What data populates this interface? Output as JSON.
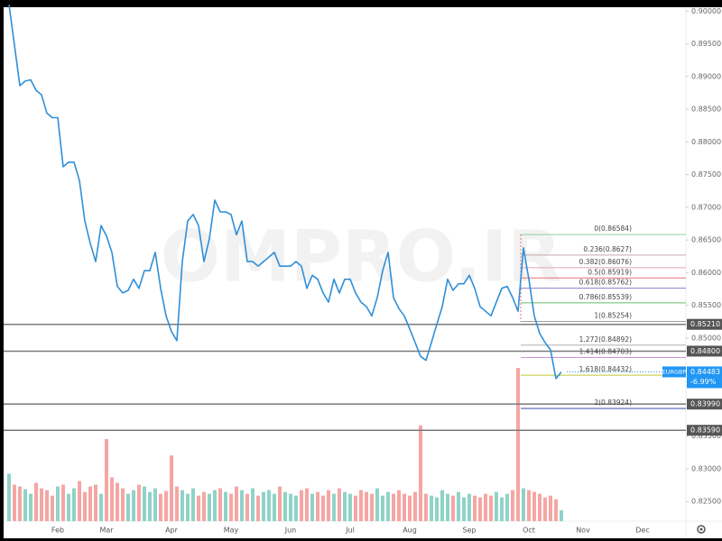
{
  "chart_data": {
    "type": "line",
    "watermark": "OMPRO.IR",
    "categories": [
      null,
      null,
      null,
      null,
      null,
      null,
      null,
      null,
      null,
      "Feb",
      null,
      null,
      null,
      null,
      null,
      null,
      null,
      null,
      "Mar",
      null,
      null,
      null,
      null,
      null,
      null,
      null,
      null,
      null,
      null,
      null,
      "Apr",
      null,
      null,
      null,
      null,
      null,
      null,
      null,
      null,
      null,
      null,
      "May",
      null,
      null,
      null,
      null,
      null,
      null,
      null,
      null,
      null,
      null,
      "Jun",
      null,
      null,
      null,
      null,
      null,
      null,
      null,
      null,
      null,
      null,
      "Jul",
      null,
      null,
      null,
      null,
      null,
      null,
      null,
      null,
      null,
      null,
      "Aug",
      null,
      null,
      null,
      null,
      null,
      null,
      null,
      null,
      null,
      null,
      "Sep",
      null,
      null,
      null,
      null,
      null,
      null,
      null,
      null,
      null,
      null,
      "Oct",
      null,
      null,
      null,
      null,
      null,
      null,
      null,
      null,
      null,
      "Nov",
      null,
      null,
      null,
      null,
      null,
      null,
      null,
      null,
      null,
      null,
      "Dec",
      null
    ],
    "series": [
      {
        "name": "EURGBP",
        "color": "#2f8fd8",
        "values": [
          0.901,
          0.8948,
          0.8886,
          0.8893,
          0.8895,
          0.8879,
          0.8872,
          0.8844,
          0.8837,
          0.8837,
          0.8762,
          0.8769,
          0.8769,
          0.8741,
          0.8679,
          0.8645,
          0.8617,
          0.8672,
          0.8656,
          0.8631,
          0.8579,
          0.8569,
          0.8573,
          0.859,
          0.8576,
          0.8603,
          0.8603,
          0.8631,
          0.8576,
          0.8534,
          0.851,
          0.8496,
          0.8617,
          0.8679,
          0.8689,
          0.8672,
          0.8617,
          0.8652,
          0.8711,
          0.8693,
          0.8693,
          0.8689,
          0.8658,
          0.8679,
          0.8617,
          0.8617,
          0.861,
          0.8617,
          0.8624,
          0.8631,
          0.861,
          0.861,
          0.861,
          0.8617,
          0.861,
          0.8576,
          0.8596,
          0.859,
          0.8569,
          0.8555,
          0.859,
          0.8569,
          0.859,
          0.859,
          0.8569,
          0.8555,
          0.8548,
          0.8534,
          0.8562,
          0.8603,
          0.8631,
          0.8562,
          0.8545,
          0.8534,
          0.8514,
          0.8493,
          0.8472,
          0.8466,
          0.8493,
          0.8521,
          0.8548,
          0.859,
          0.8573,
          0.8583,
          0.8583,
          0.8596,
          0.8576,
          0.8548,
          0.8541,
          0.8534,
          0.8555,
          0.8576,
          0.8579,
          0.8562,
          0.8541,
          0.8638,
          0.859,
          0.8534,
          0.8507,
          0.8493,
          0.8482,
          0.8438,
          0.8448,
          null,
          null,
          null,
          null,
          null,
          null,
          null,
          null,
          null,
          null,
          null,
          null,
          null,
          null,
          null,
          null
        ]
      }
    ],
    "volume": {
      "up_color": "#8fd3c8",
      "down_color": "#f5a6a3",
      "values": [
        52,
        40,
        38,
        35,
        30,
        42,
        36,
        34,
        28,
        38,
        40,
        30,
        36,
        44,
        32,
        38,
        40,
        30,
        90,
        48,
        42,
        36,
        30,
        34,
        40,
        38,
        32,
        36,
        30,
        33,
        72,
        38,
        34,
        30,
        36,
        28,
        32,
        30,
        34,
        36,
        32,
        30,
        38,
        34,
        30,
        36,
        28,
        32,
        34,
        30,
        38,
        32,
        30,
        28,
        34,
        36,
        30,
        32,
        28,
        34,
        30,
        36,
        32,
        30,
        28,
        34,
        32,
        30,
        36,
        28,
        32,
        30,
        34,
        30,
        28,
        32,
        105,
        30,
        28,
        26,
        34,
        30,
        28,
        32,
        26,
        30,
        28,
        26,
        30,
        28,
        32,
        26,
        30,
        34,
        168,
        36,
        34,
        32,
        30,
        26,
        28,
        24,
        12,
        null,
        null,
        null,
        null,
        null,
        null,
        null,
        null,
        null,
        null,
        null,
        null,
        null,
        null,
        null,
        null
      ]
    },
    "ylim": [
      0.822,
      0.9017
    ],
    "yticks": [
      {
        "value": 0.9,
        "label": "0.90000"
      },
      {
        "value": 0.895,
        "label": "0.89500"
      },
      {
        "value": 0.89,
        "label": "0.89000"
      },
      {
        "value": 0.885,
        "label": "0.88500"
      },
      {
        "value": 0.88,
        "label": "0.88000"
      },
      {
        "value": 0.875,
        "label": "0.87500"
      },
      {
        "value": 0.87,
        "label": "0.87000"
      },
      {
        "value": 0.865,
        "label": "0.86500"
      },
      {
        "value": 0.86,
        "label": "0.86000"
      },
      {
        "value": 0.855,
        "label": "0.85500"
      },
      {
        "value": 0.85,
        "label": "0.85000"
      },
      {
        "value": 0.835,
        "label": "0.83500"
      },
      {
        "value": 0.83,
        "label": "0.83000"
      },
      {
        "value": 0.825,
        "label": "0.82500"
      }
    ],
    "hlines": [
      {
        "value": 0.8521,
        "label": "0.85210"
      },
      {
        "value": 0.848,
        "label": "0.84800"
      },
      {
        "value": 0.8399,
        "label": "0.83990"
      },
      {
        "value": 0.8359,
        "label": "0.83590"
      }
    ],
    "fib_levels": [
      {
        "value": 0.86584,
        "label": "0(0.86584)",
        "color": "#8fd19e"
      },
      {
        "value": 0.8627,
        "label": "0.236(0.8627)",
        "color": "#c9a6a6"
      },
      {
        "value": 0.86076,
        "label": "0.382(0.86076)",
        "color": "#e8a0b8"
      },
      {
        "value": 0.85919,
        "label": "0.5(0.85919)",
        "color": "#e57373"
      },
      {
        "value": 0.85762,
        "label": "0.618(0.85762)",
        "color": "#9575cd"
      },
      {
        "value": 0.85539,
        "label": "0.786(0.85539)",
        "color": "#66bb6a"
      },
      {
        "value": 0.85254,
        "label": "1(0.85254)",
        "color": "#9e9e9e"
      },
      {
        "value": 0.84892,
        "label": "1.272(0.84892)",
        "color": "#b0b0b0"
      },
      {
        "value": 0.84703,
        "label": "1.414(0.84703)",
        "color": "#ce93d8"
      },
      {
        "value": 0.84432,
        "label": "1.618(0.84432)",
        "color": "#c0ca33"
      },
      {
        "value": 0.83924,
        "label": "2(0.83924)",
        "color": "#3949ab"
      }
    ],
    "last": {
      "value": 0.84483,
      "label": "0.84483",
      "change": -6.99,
      "change_label": "-6.99%"
    }
  }
}
